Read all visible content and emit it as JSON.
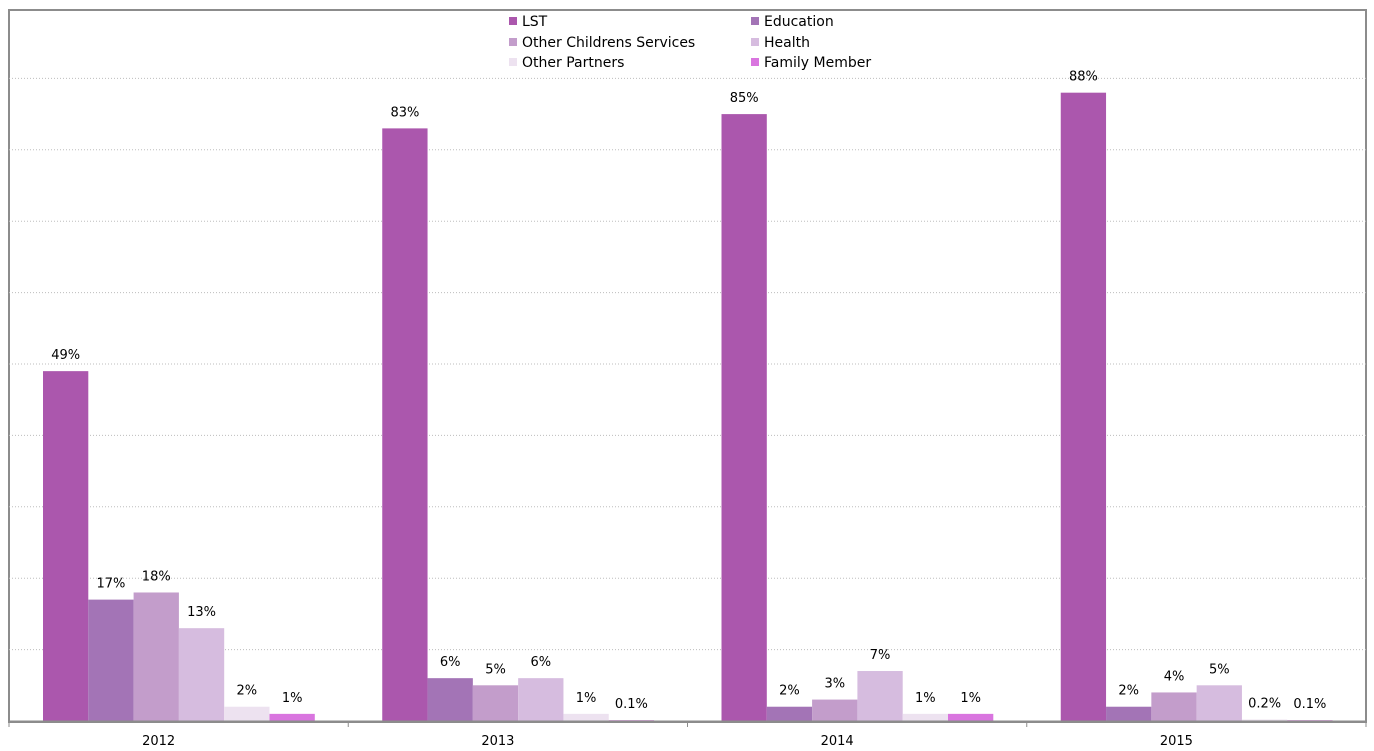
{
  "chart_data": {
    "type": "bar",
    "title": "",
    "xlabel": "",
    "ylabel": "",
    "categories": [
      "2012",
      "2013",
      "2014",
      "2015"
    ],
    "ylim": [
      0,
      100
    ],
    "grid": true,
    "legend_position": "top-center",
    "series": [
      {
        "name": "LST",
        "color": "#ab57ad",
        "values": [
          49,
          83,
          85,
          88
        ],
        "labels": [
          "49%",
          "83%",
          "85%",
          "88%"
        ]
      },
      {
        "name": "Education",
        "color": "#a374b6",
        "values": [
          17,
          6,
          2,
          2
        ],
        "labels": [
          "17%",
          "6%",
          "2%",
          "2%"
        ]
      },
      {
        "name": "Other Childrens Services",
        "color": "#c39dcb",
        "values": [
          18,
          5,
          3,
          4
        ],
        "labels": [
          "18%",
          "5%",
          "3%",
          "4%"
        ]
      },
      {
        "name": "Health",
        "color": "#d6bcdf",
        "values": [
          13,
          6,
          7,
          5
        ],
        "labels": [
          "13%",
          "6%",
          "7%",
          "5%"
        ]
      },
      {
        "name": "Other Partners",
        "color": "#ede2f0",
        "values": [
          2,
          1,
          1,
          0.2
        ],
        "labels": [
          "2%",
          "1%",
          "1%",
          "0.2%"
        ]
      },
      {
        "name": "Family Member",
        "color": "#d975df",
        "values": [
          1,
          0.1,
          1,
          0.1
        ],
        "labels": [
          "1%",
          "0.1%",
          "1%",
          "0.1%"
        ]
      }
    ]
  }
}
